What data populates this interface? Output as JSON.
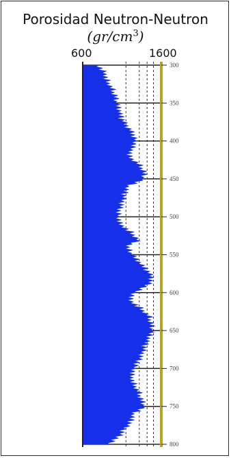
{
  "chart_data": {
    "type": "area",
    "title_line1": "Porosidad Neutron-Neutron",
    "title_line2": "(gr/cm³)",
    "x_tick_labels": [
      "600",
      "1600"
    ],
    "xlim": [
      600,
      1600
    ],
    "ylim": [
      300,
      800
    ],
    "y_tick_labels": [
      "300",
      "350",
      "400",
      "450",
      "500",
      "550",
      "600",
      "650",
      "700",
      "750",
      "800"
    ],
    "y_inverted": true,
    "fill_color": "#1530e8",
    "track_line_color": "#b8a51e",
    "grid": true,
    "series": [
      {
        "depth": [
          300,
          310,
          320,
          330,
          340,
          350,
          360,
          370,
          380,
          390,
          400,
          410,
          420,
          430,
          440,
          450,
          460,
          470,
          480,
          490,
          500,
          510,
          520,
          530,
          540,
          550,
          560,
          570,
          580,
          590,
          600,
          610,
          620,
          630,
          640,
          650,
          660,
          670,
          680,
          690,
          700,
          710,
          720,
          730,
          740,
          750,
          760,
          770,
          780,
          790,
          800
        ],
        "values": [
          790,
          880,
          900,
          960,
          1000,
          1020,
          1050,
          1080,
          1150,
          1230,
          1270,
          1230,
          1180,
          1300,
          1370,
          1360,
          1150,
          1120,
          1100,
          1060,
          1050,
          1080,
          1200,
          1300,
          1150,
          1220,
          1300,
          1400,
          1480,
          1420,
          1250,
          1200,
          1320,
          1430,
          1460,
          1470,
          1420,
          1380,
          1350,
          1300,
          1250,
          1220,
          1240,
          1300,
          1330,
          1370,
          1220,
          1200,
          1120,
          1050,
          920
        ]
      }
    ]
  }
}
